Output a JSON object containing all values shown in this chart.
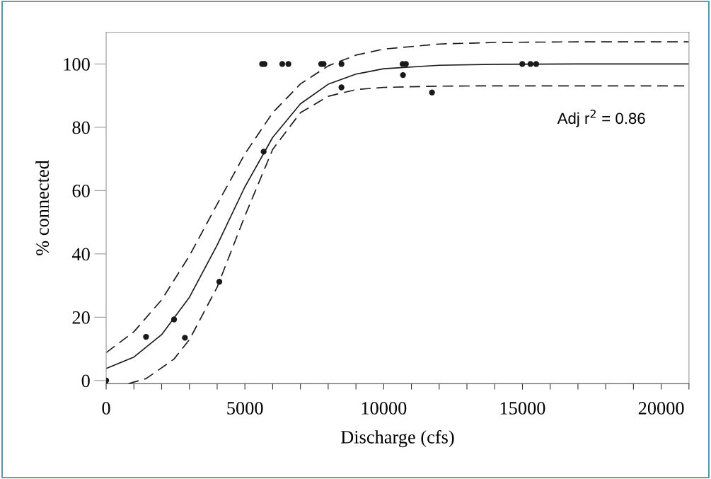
{
  "chart_data": {
    "type": "scatter",
    "xlabel": "Discharge (cfs)",
    "ylabel": "% connected",
    "annotations": [
      "Adj r$^{2}$ = 0.86"
    ],
    "xlim": [
      0,
      21000
    ],
    "ylim": [
      -1,
      110
    ],
    "xticks": [
      0,
      {
        "value": 1000,
        "label": null
      },
      {
        "value": 2000,
        "label": null
      },
      {
        "value": 3000,
        "label": null
      },
      {
        "value": 4000,
        "label": null
      },
      5000,
      {
        "value": 6000,
        "label": null
      },
      {
        "value": 7000,
        "label": null
      },
      {
        "value": 8000,
        "label": null
      },
      {
        "value": 9000,
        "label": null
      },
      10000,
      {
        "value": 11000,
        "label": null
      },
      {
        "value": 12000,
        "label": null
      },
      {
        "value": 13000,
        "label": null
      },
      {
        "value": 14000,
        "label": null
      },
      15000,
      {
        "value": 16000,
        "label": null
      },
      {
        "value": 17000,
        "label": null
      },
      {
        "value": 18000,
        "label": null
      },
      {
        "value": 19000,
        "label": null
      },
      20000,
      {
        "value": 21000,
        "label": null
      }
    ],
    "yticks": [
      0,
      20,
      40,
      60,
      80,
      100
    ],
    "grid": false,
    "series": [
      {
        "color": "#1a1a1a",
        "marker": "circle",
        "x": [
          0,
          1437,
          2447,
          2838,
          4078,
          5620,
          5705,
          5675,
          6346,
          6567,
          7748,
          7834,
          8479,
          8479,
          10683,
          10800,
          10696,
          11741,
          14995,
          15290,
          15494
        ],
        "values": [
          0,
          13.8,
          19.3,
          13.5,
          31.2,
          100,
          100,
          72.3,
          100,
          100,
          100,
          100,
          100,
          92.6,
          100,
          100,
          96.5,
          91.0,
          100,
          100,
          100
        ]
      },
      {
        "type": "line",
        "color": "#1a1a1a",
        "line_style": "solid",
        "marker": "none",
        "x": [
          0,
          1000,
          2000,
          3000,
          4000,
          5000,
          6000,
          7000,
          8000,
          9000,
          10000,
          12000,
          14000,
          17000,
          21000
        ],
        "values": [
          3.8,
          7.4,
          14.5,
          26.3,
          42.8,
          61.2,
          76.8,
          87.4,
          93.6,
          96.8,
          98.5,
          99.6,
          99.9,
          100,
          100
        ]
      },
      {
        "type": "line",
        "color": "#1a1a1a",
        "line_style": "dashed",
        "marker": "none",
        "x": [
          0,
          1000,
          2000,
          3000,
          4000,
          5000,
          6000,
          7000,
          8000,
          9000,
          10000,
          12000,
          14000,
          17000,
          21000
        ],
        "values": [
          8.8,
          15.4,
          25.5,
          39.4,
          55.7,
          71.6,
          84.6,
          93.7,
          99.4,
          102.8,
          104.7,
          106.3,
          106.8,
          107.0,
          107.0
        ]
      },
      {
        "type": "line",
        "color": "#1a1a1a",
        "line_style": "dashed",
        "marker": "none",
        "x": [
          800,
          1437,
          2000,
          2447,
          3000,
          4000,
          5000,
          6000,
          7000,
          8000,
          9000,
          10000,
          12000,
          14000,
          21000
        ],
        "values": [
          -1,
          0.6,
          4.0,
          6.8,
          12.9,
          29.5,
          52,
          73,
          84.6,
          89.8,
          91.9,
          92.6,
          93.0,
          93.1,
          93.1
        ]
      }
    ]
  }
}
